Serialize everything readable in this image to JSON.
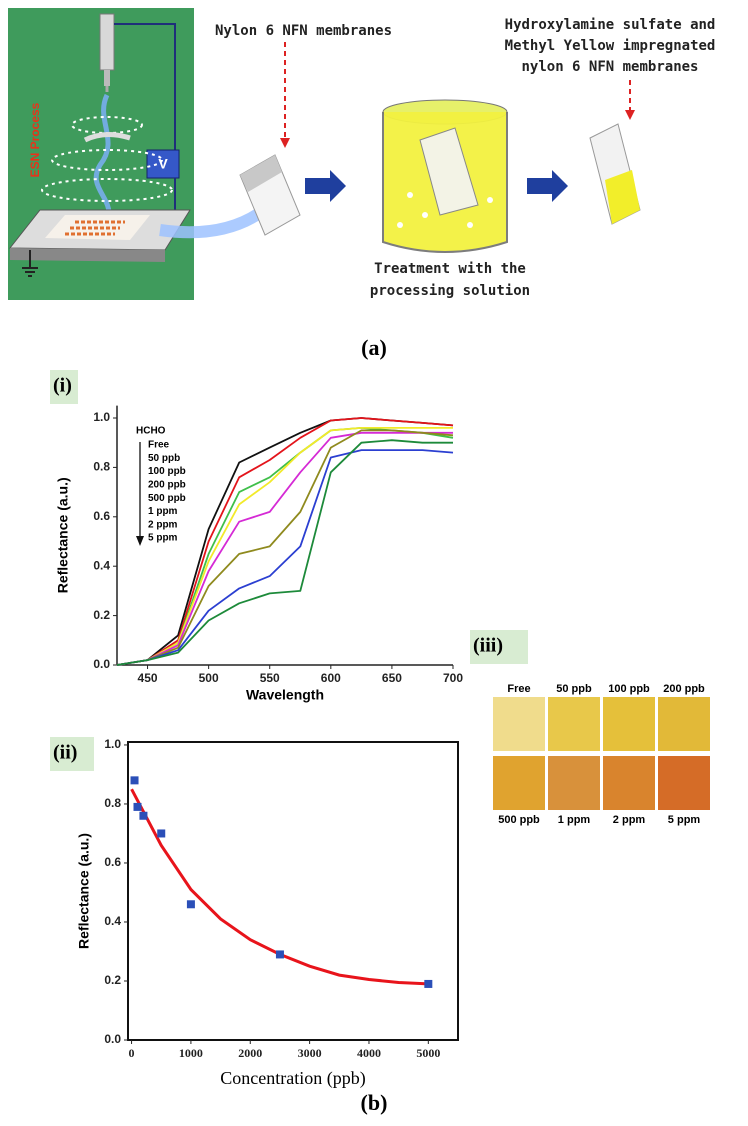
{
  "panel_a": {
    "esn_label": "ESN Process",
    "voltage": "V",
    "membrane_label": "Nylon 6 NFN membranes",
    "treatment_label": [
      "Treatment with the",
      "processing solution"
    ],
    "product_label": [
      "Hydroxylamine sulfate and",
      "Methyl Yellow impregnated",
      "nylon 6 NFN membranes"
    ],
    "caption": "(a)"
  },
  "chart_data": [
    {
      "type": "line",
      "panel_label": "(i)",
      "x_label": "Wavelength",
      "y_label": "Reflectance (a.u.)",
      "annotation": "HCHO",
      "x": [
        425,
        450,
        475,
        500,
        525,
        550,
        575,
        600,
        625,
        650,
        675,
        700
      ],
      "series": [
        {
          "name": "Free",
          "color": "#111111",
          "values": [
            0,
            0.02,
            0.12,
            0.55,
            0.82,
            0.88,
            0.94,
            0.99,
            1.0,
            0.99,
            0.98,
            0.97
          ]
        },
        {
          "name": "50 ppb",
          "color": "#e3141b",
          "values": [
            0,
            0.02,
            0.1,
            0.5,
            0.76,
            0.83,
            0.92,
            0.99,
            1.0,
            0.99,
            0.98,
            0.97
          ]
        },
        {
          "name": "100 ppb",
          "color": "#3fbf4a",
          "values": [
            0,
            0.02,
            0.09,
            0.45,
            0.7,
            0.76,
            0.86,
            0.95,
            0.96,
            0.95,
            0.94,
            0.92
          ]
        },
        {
          "name": "200 ppb",
          "color": "#f2ea2a",
          "values": [
            0,
            0.02,
            0.09,
            0.42,
            0.65,
            0.74,
            0.86,
            0.95,
            0.96,
            0.96,
            0.96,
            0.96
          ]
        },
        {
          "name": "500 ppb",
          "color": "#d52ad5",
          "values": [
            0,
            0.02,
            0.08,
            0.38,
            0.58,
            0.62,
            0.78,
            0.92,
            0.94,
            0.94,
            0.94,
            0.94
          ]
        },
        {
          "name": "1 ppm",
          "color": "#8f8a1e",
          "values": [
            0,
            0.02,
            0.07,
            0.32,
            0.45,
            0.48,
            0.62,
            0.88,
            0.95,
            0.95,
            0.94,
            0.93
          ]
        },
        {
          "name": "2 ppm",
          "color": "#2b3fd1",
          "values": [
            0,
            0.02,
            0.06,
            0.22,
            0.31,
            0.36,
            0.48,
            0.84,
            0.87,
            0.87,
            0.87,
            0.86
          ]
        },
        {
          "name": "5 ppm",
          "color": "#1d8a3a",
          "values": [
            0,
            0.02,
            0.05,
            0.18,
            0.25,
            0.29,
            0.3,
            0.78,
            0.9,
            0.91,
            0.9,
            0.9
          ]
        }
      ],
      "xlim": [
        425,
        700
      ],
      "ylim": [
        0,
        1.05
      ],
      "xticks": [
        450,
        500,
        550,
        600,
        650,
        700
      ],
      "yticks": [
        {
          "value": 0,
          "label": "0.0"
        },
        0.2,
        0.4,
        0.6,
        0.8,
        {
          "value": 1,
          "label": "1.0"
        }
      ]
    },
    {
      "type": "scatter",
      "panel_label": "(ii)",
      "x_label": "Concentration (ppb)",
      "y_label": "Reflectance (a.u.)",
      "points": {
        "color": "#2b4fb8",
        "x": [
          50,
          100,
          200,
          500,
          1000,
          2500,
          5000
        ],
        "y": [
          0.88,
          0.79,
          0.76,
          0.7,
          0.46,
          0.29,
          0.19
        ]
      },
      "fit": {
        "color": "#e8141b",
        "x": [
          0,
          500,
          1000,
          1500,
          2000,
          2500,
          3000,
          3500,
          4000,
          4500,
          5000
        ],
        "y": [
          0.85,
          0.66,
          0.51,
          0.41,
          0.34,
          0.29,
          0.25,
          0.22,
          0.205,
          0.195,
          0.19
        ]
      },
      "xlim": [
        -60,
        5500
      ],
      "ylim": [
        0,
        1.01
      ],
      "xticks": [
        0,
        1000,
        2000,
        3000,
        4000,
        5000
      ],
      "yticks": [
        {
          "value": 0,
          "label": "0.0"
        },
        0.2,
        0.4,
        0.6,
        0.8,
        {
          "value": 1,
          "label": "1.0"
        }
      ]
    }
  ],
  "panel_iii": {
    "label": "(iii)",
    "samples": [
      {
        "label": "Free",
        "color": "#f0dc8c"
      },
      {
        "label": "50 ppb",
        "color": "#e8c84a"
      },
      {
        "label": "100 ppb",
        "color": "#e5c03a"
      },
      {
        "label": "200 ppb",
        "color": "#e2b938"
      },
      {
        "label": "500 ppb",
        "color": "#e0a32f"
      },
      {
        "label": "1 ppm",
        "color": "#d8913b"
      },
      {
        "label": "2 ppm",
        "color": "#d9842d"
      },
      {
        "label": "5 ppm",
        "color": "#d56c27"
      }
    ]
  },
  "caption_b": "(b)"
}
